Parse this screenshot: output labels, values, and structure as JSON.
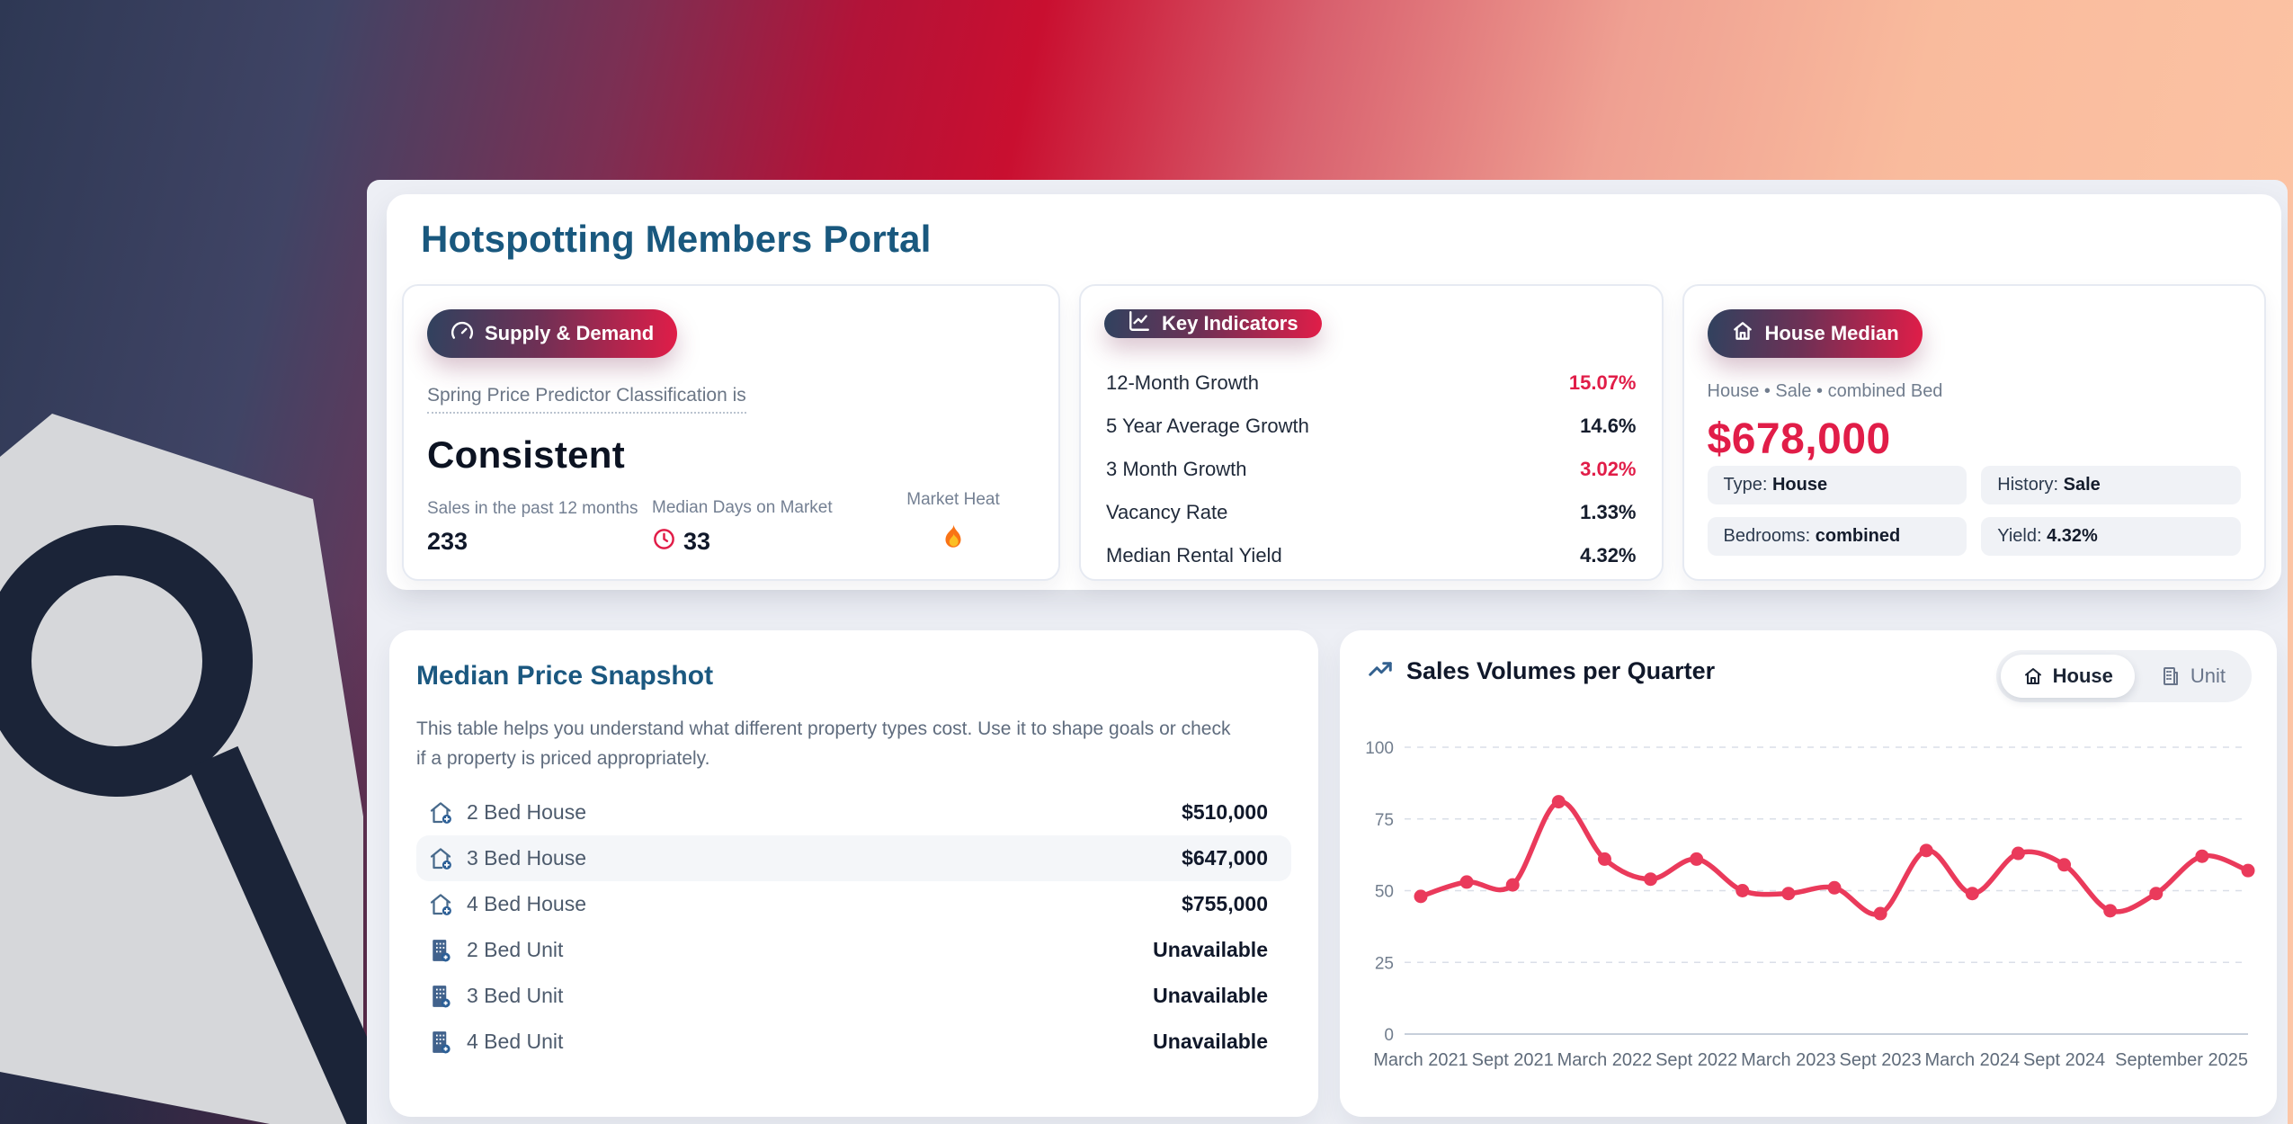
{
  "page": {
    "title": "Hotspotting Members Portal"
  },
  "supply_demand": {
    "badge": "Supply & Demand",
    "badge_icon": "gauge-icon",
    "caption": "Spring Price Predictor Classification is",
    "classification": "Consistent",
    "stats": {
      "sales": {
        "label": "Sales in the past 12 months",
        "value": "233"
      },
      "days": {
        "label": "Median Days on Market",
        "value": "33",
        "value_icon": "clock-icon"
      },
      "heat": {
        "label": "Market Heat",
        "value_icon": "flame-icon"
      }
    }
  },
  "key_indicators": {
    "badge": "Key Indicators",
    "badge_icon": "chart-line-icon",
    "rows": [
      {
        "label": "12-Month Growth",
        "value": "15.07%",
        "highlight": true
      },
      {
        "label": "5 Year Average Growth",
        "value": "14.6%",
        "highlight": false
      },
      {
        "label": "3 Month Growth",
        "value": "3.02%",
        "highlight": true
      },
      {
        "label": "Vacancy Rate",
        "value": "1.33%",
        "highlight": false
      },
      {
        "label": "Median Rental Yield",
        "value": "4.32%",
        "highlight": false
      }
    ]
  },
  "house_median": {
    "badge": "House Median",
    "badge_icon": "house-icon",
    "subtitle": "House • Sale • combined Bed",
    "price": "$678,000",
    "pills": [
      {
        "label": "Type:",
        "value": "House"
      },
      {
        "label": "History:",
        "value": "Sale"
      },
      {
        "label": "Bedrooms:",
        "value": "combined"
      },
      {
        "label": "Yield:",
        "value": "4.32%"
      }
    ]
  },
  "median_price": {
    "title": "Median Price Snapshot",
    "description": "This table helps you understand what different property types cost. Use it to shape goals or check if a property is priced appropriately.",
    "rows": [
      {
        "icon": "house-plus-icon",
        "label": "2 Bed House",
        "value": "$510,000"
      },
      {
        "icon": "house-plus-icon",
        "label": "3 Bed House",
        "value": "$647,000"
      },
      {
        "icon": "house-plus-icon",
        "label": "4 Bed House",
        "value": "$755,000"
      },
      {
        "icon": "building-plus-icon",
        "label": "2 Bed Unit",
        "value": "Unavailable"
      },
      {
        "icon": "building-plus-icon",
        "label": "3 Bed Unit",
        "value": "Unavailable"
      },
      {
        "icon": "building-plus-icon",
        "label": "4 Bed Unit",
        "value": "Unavailable"
      }
    ]
  },
  "sales_volumes": {
    "title": "Sales Volumes per Quarter",
    "title_icon": "trending-up-icon",
    "toggle": {
      "house_label": "House",
      "unit_label": "Unit",
      "active": "House"
    }
  },
  "chart_data": {
    "type": "line",
    "title": "Sales Volumes per Quarter",
    "x": [
      "Mar 2021",
      "Jun 2021",
      "Sep 2021",
      "Dec 2021",
      "Mar 2022",
      "Jun 2022",
      "Sep 2022",
      "Dec 2022",
      "Mar 2023",
      "Jun 2023",
      "Sep 2023",
      "Dec 2023",
      "Mar 2024",
      "Jun 2024",
      "Sep 2024",
      "Dec 2024",
      "Mar 2025",
      "Jun 2025",
      "Sep 2025"
    ],
    "values": [
      48,
      53,
      52,
      81,
      61,
      54,
      61,
      50,
      49,
      51,
      42,
      64,
      49,
      63,
      59,
      43,
      49,
      62,
      57
    ],
    "x_tick_labels": [
      "March 2021",
      "Sept 2021",
      "March 2022",
      "Sept 2022",
      "March 2023",
      "Sept 2023",
      "March 2024",
      "Sept 2024",
      "September 2025"
    ],
    "x_tick_indices": [
      0,
      2,
      4,
      6,
      8,
      10,
      12,
      14,
      18
    ],
    "y_ticks": [
      0,
      25,
      50,
      75,
      100
    ],
    "ylim": [
      0,
      100
    ],
    "grid": true,
    "legend": false,
    "line_color": "#ea3a5b",
    "grid_color": "#dadfe8",
    "axis_color": "#c7cfdb"
  },
  "colors": {
    "accent_crimson": "#e11d48",
    "title_teal": "#19587e",
    "badge_gradient_start": "#30425f",
    "badge_gradient_end": "#e11d48",
    "panel_bg": "#edeff5"
  }
}
